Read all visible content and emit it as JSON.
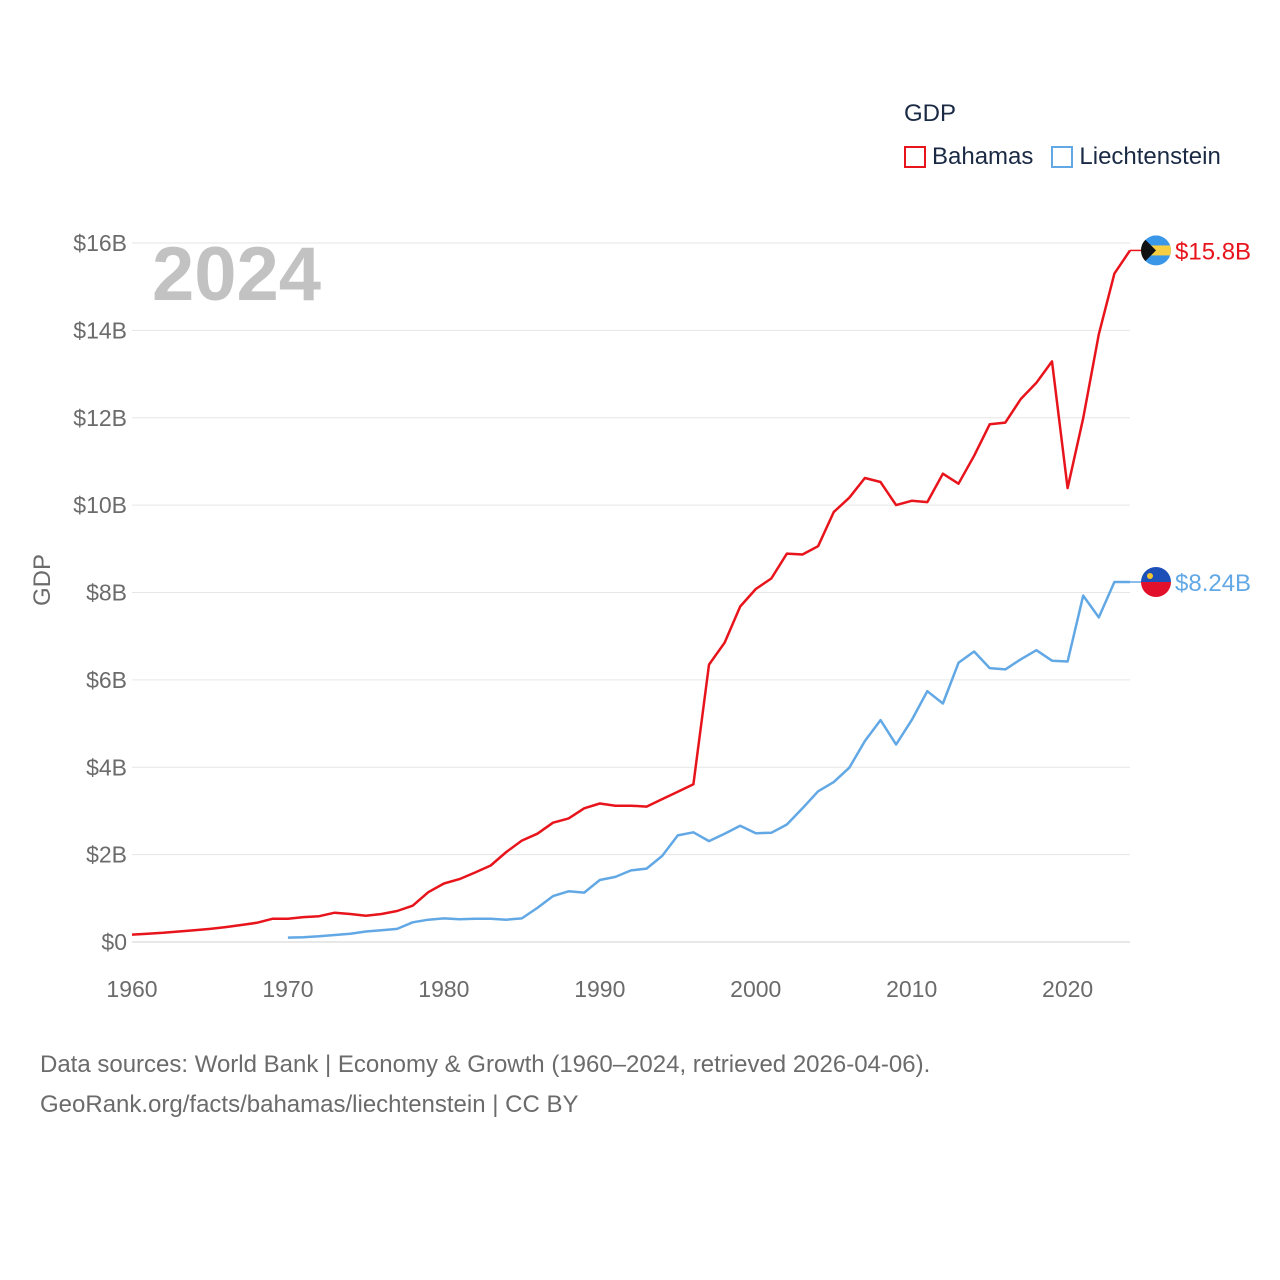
{
  "legend": {
    "title": "GDP",
    "items": [
      {
        "label": "Bahamas",
        "color": "#e8141c"
      },
      {
        "label": "Liechtenstein",
        "color": "#62a8e5"
      }
    ]
  },
  "footer": {
    "line1": "Data sources: World Bank | Economy & Growth (1960–2024, retrieved 2026-04-06).",
    "line2": "GeoRank.org/facts/bahamas/liechtenstein | CC BY"
  },
  "chart_data": {
    "type": "line",
    "title": "GDP",
    "year_label": "2024",
    "xlabel": "",
    "ylabel": "GDP",
    "xlim": [
      1960,
      2024
    ],
    "ylim": [
      0,
      16
    ],
    "y_unit": "billion USD",
    "x_ticks": [
      1960,
      1970,
      1980,
      1990,
      2000,
      2010,
      2020
    ],
    "y_ticks": [
      {
        "value": 0,
        "label": "$0"
      },
      {
        "value": 2,
        "label": "$2B"
      },
      {
        "value": 4,
        "label": "$4B"
      },
      {
        "value": 6,
        "label": "$6B"
      },
      {
        "value": 8,
        "label": "$8B"
      },
      {
        "value": 10,
        "label": "$10B"
      },
      {
        "value": 12,
        "label": "$12B"
      },
      {
        "value": 14,
        "label": "$14B"
      },
      {
        "value": 16,
        "label": "$16B"
      }
    ],
    "grid": true,
    "legend_position": "top-right",
    "series": [
      {
        "name": "Bahamas",
        "color": "#e8141c",
        "end_label": "$15.8B",
        "flag": "bahamas-flag",
        "x": [
          1960,
          1961,
          1962,
          1963,
          1964,
          1965,
          1966,
          1967,
          1968,
          1969,
          1970,
          1971,
          1972,
          1973,
          1974,
          1975,
          1976,
          1977,
          1978,
          1979,
          1980,
          1981,
          1982,
          1983,
          1984,
          1985,
          1986,
          1987,
          1988,
          1989,
          1990,
          1991,
          1992,
          1993,
          1994,
          1995,
          1996,
          1997,
          1998,
          1999,
          2000,
          2001,
          2002,
          2003,
          2004,
          2005,
          2006,
          2007,
          2008,
          2009,
          2010,
          2011,
          2012,
          2013,
          2014,
          2015,
          2016,
          2017,
          2018,
          2019,
          2020,
          2021,
          2022,
          2023,
          2024
        ],
        "values": [
          0.17,
          0.19,
          0.21,
          0.24,
          0.27,
          0.3,
          0.34,
          0.39,
          0.44,
          0.53,
          0.53,
          0.57,
          0.59,
          0.67,
          0.64,
          0.6,
          0.64,
          0.71,
          0.83,
          1.14,
          1.34,
          1.44,
          1.59,
          1.75,
          2.06,
          2.32,
          2.48,
          2.73,
          2.83,
          3.06,
          3.17,
          3.12,
          3.12,
          3.1,
          3.27,
          3.44,
          3.61,
          6.35,
          6.85,
          7.68,
          8.08,
          8.32,
          8.89,
          8.87,
          9.06,
          9.84,
          10.17,
          10.62,
          10.53,
          10.0,
          10.1,
          10.07,
          10.72,
          10.49,
          11.13,
          11.85,
          11.89,
          12.43,
          12.8,
          13.29,
          10.39,
          11.99,
          13.91,
          15.3,
          15.83
        ]
      },
      {
        "name": "Liechtenstein",
        "color": "#62a8e5",
        "end_label": "$8.24B",
        "flag": "liechtenstein-flag",
        "x": [
          1970,
          1971,
          1972,
          1973,
          1974,
          1975,
          1976,
          1977,
          1978,
          1979,
          1980,
          1981,
          1982,
          1983,
          1984,
          1985,
          1986,
          1987,
          1988,
          1989,
          1990,
          1991,
          1992,
          1993,
          1994,
          1995,
          1996,
          1997,
          1998,
          1999,
          2000,
          2001,
          2002,
          2003,
          2004,
          2005,
          2006,
          2007,
          2008,
          2009,
          2010,
          2011,
          2012,
          2013,
          2014,
          2015,
          2016,
          2017,
          2018,
          2019,
          2020,
          2021,
          2022,
          2023,
          2024
        ],
        "values": [
          0.1,
          0.11,
          0.13,
          0.16,
          0.19,
          0.24,
          0.27,
          0.3,
          0.45,
          0.51,
          0.54,
          0.52,
          0.53,
          0.53,
          0.51,
          0.54,
          0.78,
          1.05,
          1.16,
          1.13,
          1.42,
          1.49,
          1.64,
          1.68,
          1.97,
          2.44,
          2.51,
          2.31,
          2.48,
          2.66,
          2.49,
          2.5,
          2.69,
          3.06,
          3.45,
          3.66,
          3.99,
          4.6,
          5.08,
          4.52,
          5.08,
          5.74,
          5.46,
          6.39,
          6.65,
          6.27,
          6.24,
          6.47,
          6.68,
          6.44,
          6.42,
          7.93,
          7.43,
          8.24,
          8.24
        ]
      }
    ]
  }
}
